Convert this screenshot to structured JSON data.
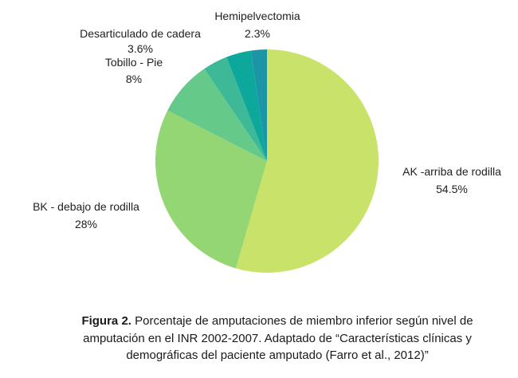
{
  "caption": {
    "label": "Figura 2.",
    "text": "Porcentaje de amputaciones de miembro inferior según nivel de amputación en el INR 2002-2007. Adaptado de “Características clínicas y demográficas del paciente amputado (Farro et al., 2012)”"
  },
  "chart_data": {
    "type": "pie",
    "start": "top",
    "direction": "clockwise",
    "slices": [
      {
        "label": "AK -arriba de rodilla",
        "value": 54.5,
        "color": "#c9e26a"
      },
      {
        "label": "BK - debajo de rodilla",
        "value": 28,
        "color": "#94d574"
      },
      {
        "label": "Tobillo - Pie",
        "value": 8,
        "color": "#64c989"
      },
      {
        "label": "Desarticulado de cadera",
        "value": 3.6,
        "color": "#3db997"
      },
      {
        "label": "",
        "value": 3.6,
        "color": "#0da79b"
      },
      {
        "label": "Hemipelvectomia",
        "value": 2.3,
        "color": "#1c96a6"
      }
    ]
  }
}
